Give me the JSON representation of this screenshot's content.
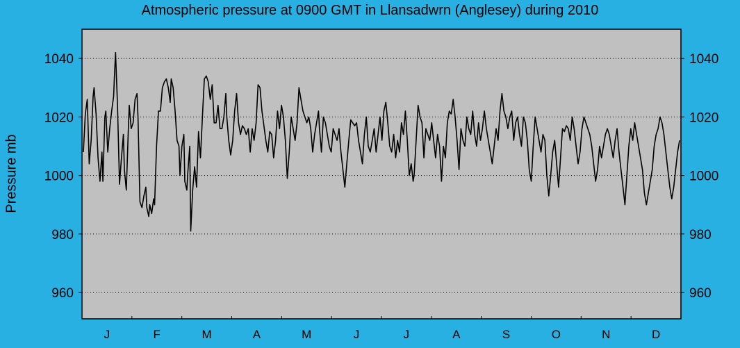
{
  "chart_data": {
    "type": "line",
    "title": "Atmospheric pressure at 0900 GMT in Llansadwrn (Anglesey) during 2010",
    "ylabel": "Pressure mb",
    "xlabel": "",
    "ylim": [
      951,
      1050
    ],
    "yticks": [
      960,
      980,
      1000,
      1020,
      1040
    ],
    "grid": true,
    "months": [
      "J",
      "F",
      "M",
      "A",
      "M",
      "J",
      "J",
      "A",
      "S",
      "O",
      "N",
      "D"
    ],
    "series": [
      {
        "color": "#000000",
        "x_unit": "day of year",
        "points": [
          [
            1,
            1008
          ],
          [
            3,
            1021
          ],
          [
            5,
            1026
          ],
          [
            7,
            1004
          ],
          [
            9,
            1012
          ],
          [
            11,
            1027
          ],
          [
            12,
            1030
          ],
          [
            14,
            1021
          ],
          [
            16,
            1006
          ],
          [
            18,
            998
          ],
          [
            20,
            1008
          ],
          [
            21,
            998
          ],
          [
            23,
            1020
          ],
          [
            24,
            1022
          ],
          [
            26,
            1008
          ],
          [
            28,
            1016
          ],
          [
            30,
            1022
          ],
          [
            32,
            1027
          ],
          [
            33,
            1035
          ],
          [
            34,
            1042
          ],
          [
            36,
            1024
          ],
          [
            38,
            997
          ],
          [
            40,
            1006
          ],
          [
            42,
            1014
          ],
          [
            43,
            1002
          ],
          [
            45,
            995
          ],
          [
            47,
            1015
          ],
          [
            48,
            1024
          ],
          [
            50,
            1016
          ],
          [
            52,
            1018
          ],
          [
            54,
            1026
          ],
          [
            56,
            1028
          ],
          [
            57,
            1020
          ],
          [
            59,
            991
          ],
          [
            61,
            989
          ],
          [
            63,
            993
          ],
          [
            65,
            996
          ],
          [
            66,
            989
          ],
          [
            68,
            986
          ],
          [
            69,
            990
          ],
          [
            71,
            987
          ],
          [
            73,
            992
          ],
          [
            74,
            990
          ],
          [
            76,
            1010
          ],
          [
            78,
            1022
          ],
          [
            80,
            1022
          ],
          [
            82,
            1030
          ],
          [
            84,
            1032
          ],
          [
            86,
            1033
          ],
          [
            88,
            1030
          ],
          [
            90,
            1025
          ],
          [
            91,
            1033
          ],
          [
            93,
            1030
          ],
          [
            95,
            1022
          ],
          [
            97,
            1012
          ],
          [
            99,
            1010
          ],
          [
            100,
            1000
          ],
          [
            102,
            1010
          ],
          [
            104,
            1014
          ],
          [
            105,
            998
          ],
          [
            107,
            995
          ],
          [
            108,
            1001
          ],
          [
            110,
            1010
          ],
          [
            111,
            981
          ],
          [
            113,
            995
          ],
          [
            115,
            1003
          ],
          [
            117,
            996
          ],
          [
            119,
            1015
          ],
          [
            121,
            1006
          ],
          [
            123,
            1020
          ],
          [
            125,
            1033
          ],
          [
            127,
            1034
          ],
          [
            129,
            1032
          ],
          [
            131,
            1026
          ],
          [
            133,
            1031
          ],
          [
            135,
            1018
          ],
          [
            137,
            1018
          ],
          [
            139,
            1024
          ],
          [
            141,
            1016
          ],
          [
            143,
            1016
          ],
          [
            145,
            1020
          ],
          [
            147,
            1028
          ],
          [
            148,
            1020
          ],
          [
            150,
            1012
          ],
          [
            152,
            1007
          ],
          [
            154,
            1012
          ],
          [
            156,
            1022
          ],
          [
            158,
            1028
          ],
          [
            160,
            1018
          ],
          [
            162,
            1014
          ],
          [
            164,
            1017
          ],
          [
            166,
            1016
          ],
          [
            168,
            1014
          ],
          [
            170,
            1016
          ],
          [
            172,
            1008
          ],
          [
            174,
            1016
          ],
          [
            176,
            1012
          ],
          [
            178,
            1018
          ],
          [
            180,
            1031
          ],
          [
            182,
            1030
          ],
          [
            184,
            1022
          ],
          [
            186,
            1017
          ],
          [
            188,
            1012
          ],
          [
            190,
            1008
          ],
          [
            192,
            1015
          ],
          [
            194,
            1014
          ],
          [
            196,
            1006
          ],
          [
            198,
            1012
          ],
          [
            200,
            1022
          ],
          [
            202,
            1016
          ],
          [
            204,
            1024
          ],
          [
            206,
            1020
          ],
          [
            208,
            1012
          ],
          [
            210,
            999
          ],
          [
            212,
            1008
          ],
          [
            214,
            1020
          ],
          [
            216,
            1016
          ],
          [
            218,
            1012
          ],
          [
            220,
            1018
          ],
          [
            222,
            1030
          ],
          [
            224,
            1026
          ],
          [
            226,
            1022
          ],
          [
            228,
            1020
          ],
          [
            230,
            1018
          ],
          [
            232,
            1020
          ],
          [
            234,
            1016
          ],
          [
            236,
            1008
          ],
          [
            238,
            1014
          ],
          [
            240,
            1018
          ],
          [
            242,
            1022
          ],
          [
            243,
            1016
          ],
          [
            245,
            1008
          ],
          [
            247,
            1020
          ],
          [
            249,
            1018
          ],
          [
            251,
            1014
          ],
          [
            253,
            1010
          ],
          [
            255,
            1008
          ],
          [
            257,
            1016
          ],
          [
            259,
            1014
          ],
          [
            261,
            1012
          ],
          [
            263,
            1016
          ],
          [
            265,
            1008
          ],
          [
            267,
            1002
          ],
          [
            269,
            996
          ],
          [
            271,
            1004
          ],
          [
            273,
            1012
          ],
          [
            275,
            1019
          ],
          [
            277,
            1018
          ],
          [
            279,
            1017
          ],
          [
            281,
            1018
          ],
          [
            283,
            1012
          ],
          [
            285,
            1008
          ],
          [
            287,
            1004
          ],
          [
            289,
            1014
          ],
          [
            291,
            1020
          ],
          [
            293,
            1010
          ],
          [
            295,
            1008
          ],
          [
            297,
            1012
          ],
          [
            299,
            1016
          ],
          [
            301,
            1008
          ],
          [
            303,
            1014
          ],
          [
            305,
            1020
          ],
          [
            307,
            1012
          ],
          [
            309,
            1022
          ],
          [
            311,
            1025
          ],
          [
            313,
            1018
          ],
          [
            315,
            1010
          ],
          [
            317,
            1008
          ],
          [
            319,
            1014
          ],
          [
            321,
            1006
          ],
          [
            323,
            1012
          ],
          [
            325,
            1008
          ],
          [
            327,
            1018
          ],
          [
            329,
            1014
          ],
          [
            331,
            1022
          ],
          [
            333,
            1012
          ],
          [
            335,
            1000
          ],
          [
            337,
            1004
          ],
          [
            339,
            998
          ],
          [
            340,
            1000
          ],
          [
            342,
            1012
          ],
          [
            344,
            1024
          ],
          [
            346,
            1020
          ],
          [
            348,
            1018
          ],
          [
            350,
            1006
          ],
          [
            352,
            1016
          ],
          [
            354,
            1014
          ],
          [
            356,
            1012
          ],
          [
            358,
            1018
          ],
          [
            360,
            1012
          ],
          [
            362,
            1006
          ],
          [
            364,
            1014
          ],
          [
            366,
            1010
          ],
          [
            368,
            998
          ],
          [
            370,
            1010
          ],
          [
            372,
            1006
          ],
          [
            374,
            1018
          ],
          [
            376,
            1022
          ],
          [
            378,
            1021
          ],
          [
            380,
            1026
          ],
          [
            382,
            1020
          ],
          [
            384,
            1012
          ],
          [
            386,
            1002
          ],
          [
            388,
            1016
          ],
          [
            390,
            1012
          ],
          [
            392,
            1010
          ],
          [
            394,
            1020
          ],
          [
            396,
            1016
          ],
          [
            398,
            1014
          ],
          [
            400,
            1022
          ],
          [
            402,
            1014
          ],
          [
            404,
            1010
          ],
          [
            406,
            1018
          ],
          [
            408,
            1012
          ],
          [
            410,
            1016
          ],
          [
            412,
            1022
          ],
          [
            414,
            1016
          ],
          [
            416,
            1012
          ],
          [
            418,
            1008
          ],
          [
            420,
            1004
          ],
          [
            422,
            1010
          ],
          [
            424,
            1016
          ],
          [
            426,
            1012
          ],
          [
            428,
            1022
          ],
          [
            430,
            1028
          ],
          [
            432,
            1022
          ],
          [
            434,
            1020
          ],
          [
            436,
            1016
          ],
          [
            438,
            1020
          ],
          [
            440,
            1022
          ],
          [
            442,
            1012
          ],
          [
            444,
            1018
          ],
          [
            446,
            1020
          ],
          [
            448,
            1014
          ],
          [
            450,
            1010
          ],
          [
            452,
            1020
          ],
          [
            454,
            1018
          ],
          [
            456,
            1012
          ],
          [
            458,
            1002
          ],
          [
            460,
            998
          ],
          [
            462,
            1010
          ],
          [
            464,
            1020
          ],
          [
            466,
            1016
          ],
          [
            468,
            1012
          ],
          [
            470,
            1008
          ],
          [
            472,
            1014
          ],
          [
            474,
            1012
          ],
          [
            476,
            1000
          ],
          [
            478,
            993
          ],
          [
            480,
            1000
          ],
          [
            482,
            1008
          ],
          [
            484,
            1012
          ],
          [
            486,
            1004
          ],
          [
            488,
            996
          ],
          [
            490,
            1006
          ],
          [
            492,
            1016
          ],
          [
            494,
            1015
          ],
          [
            496,
            1017
          ],
          [
            498,
            1016
          ],
          [
            500,
            1012
          ],
          [
            502,
            1020
          ],
          [
            504,
            1016
          ],
          [
            506,
            1010
          ],
          [
            508,
            1004
          ],
          [
            510,
            1008
          ],
          [
            512,
            1016
          ],
          [
            514,
            1020
          ],
          [
            516,
            1018
          ],
          [
            518,
            1016
          ],
          [
            520,
            1014
          ],
          [
            522,
            1010
          ],
          [
            524,
            1004
          ],
          [
            526,
            998
          ],
          [
            528,
            1002
          ],
          [
            530,
            1010
          ],
          [
            532,
            1006
          ],
          [
            534,
            1010
          ],
          [
            536,
            1014
          ],
          [
            538,
            1016
          ],
          [
            540,
            1014
          ],
          [
            542,
            1010
          ],
          [
            544,
            1006
          ],
          [
            546,
            1012
          ],
          [
            548,
            1016
          ],
          [
            550,
            1008
          ],
          [
            552,
            1002
          ],
          [
            554,
            996
          ],
          [
            556,
            990
          ],
          [
            558,
            1000
          ],
          [
            560,
            1010
          ],
          [
            562,
            1016
          ],
          [
            564,
            1012
          ],
          [
            566,
            1018
          ],
          [
            568,
            1014
          ],
          [
            570,
            1010
          ],
          [
            572,
            1006
          ],
          [
            574,
            1002
          ],
          [
            576,
            994
          ],
          [
            578,
            990
          ],
          [
            580,
            994
          ],
          [
            582,
            998
          ],
          [
            584,
            1002
          ],
          [
            586,
            1010
          ],
          [
            588,
            1014
          ],
          [
            590,
            1016
          ],
          [
            592,
            1020
          ],
          [
            594,
            1018
          ],
          [
            596,
            1014
          ],
          [
            598,
            1008
          ],
          [
            600,
            1002
          ],
          [
            602,
            996
          ],
          [
            604,
            992
          ],
          [
            606,
            996
          ],
          [
            608,
            1002
          ],
          [
            610,
            1008
          ],
          [
            612,
            1012
          ]
        ]
      }
    ]
  }
}
